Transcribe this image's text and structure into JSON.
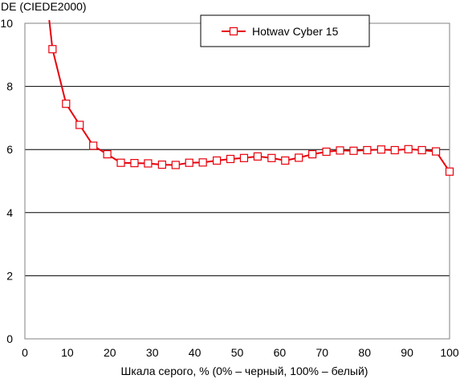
{
  "chart_data": {
    "type": "line",
    "ylabel": "DE (CIEDE2000)",
    "xlabel": "Шкала серого, % (0% – черный, 100% – белый)",
    "xlim": [
      0,
      100
    ],
    "ylim": [
      0,
      10
    ],
    "xticks": [
      "0",
      "10",
      "20",
      "30",
      "40",
      "50",
      "60",
      "70",
      "80",
      "90",
      "100"
    ],
    "yticks": [
      "0",
      "2",
      "4",
      "6",
      "8",
      "10"
    ],
    "grid": "horizontal",
    "legend": "top-center",
    "series": [
      {
        "name": "Hotwav Cyber 15",
        "color": "#e8000b",
        "marker": "open-square",
        "x": [
          6.5,
          9.7,
          12.9,
          16.1,
          19.4,
          22.6,
          25.8,
          29.0,
          32.3,
          35.5,
          38.7,
          41.9,
          45.2,
          48.4,
          51.6,
          54.8,
          58.1,
          61.3,
          64.5,
          67.7,
          71.0,
          74.2,
          77.4,
          80.6,
          83.9,
          87.1,
          90.3,
          93.5,
          96.8,
          100
        ],
        "y": [
          9.18,
          7.45,
          6.78,
          6.12,
          5.85,
          5.58,
          5.57,
          5.56,
          5.52,
          5.51,
          5.58,
          5.59,
          5.65,
          5.7,
          5.73,
          5.78,
          5.73,
          5.65,
          5.74,
          5.85,
          5.93,
          5.97,
          5.96,
          5.98,
          6.0,
          5.98,
          6.01,
          5.98,
          5.94,
          5.3
        ]
      }
    ]
  }
}
